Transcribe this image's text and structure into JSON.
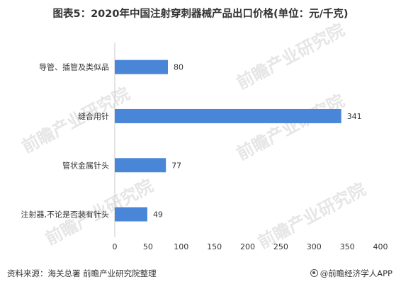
{
  "chart_data": {
    "type": "bar",
    "orientation": "horizontal",
    "title": "图表5：2020年中国注射穿刺器械产品出口价格(单位：元/千克)",
    "categories": [
      "导管、插管及类似品",
      "缝合用针",
      "管状金属针头",
      "注射器,不论是否装有针头"
    ],
    "values": [
      80,
      341,
      77,
      49
    ],
    "value_labels": [
      "80",
      "341",
      "77",
      "49"
    ],
    "xlim": [
      0,
      400
    ],
    "x_ticks": [
      "0",
      "50",
      "100",
      "150",
      "200",
      "250",
      "300",
      "350",
      "400"
    ],
    "grid": false,
    "bar_color": "#4a86d8"
  },
  "watermark": {
    "text": "前瞻产业研究院"
  },
  "footer": {
    "source": "资料来源：海关总署 前瞻产业研究院整理",
    "brand": "@前瞻经济学人APP"
  }
}
